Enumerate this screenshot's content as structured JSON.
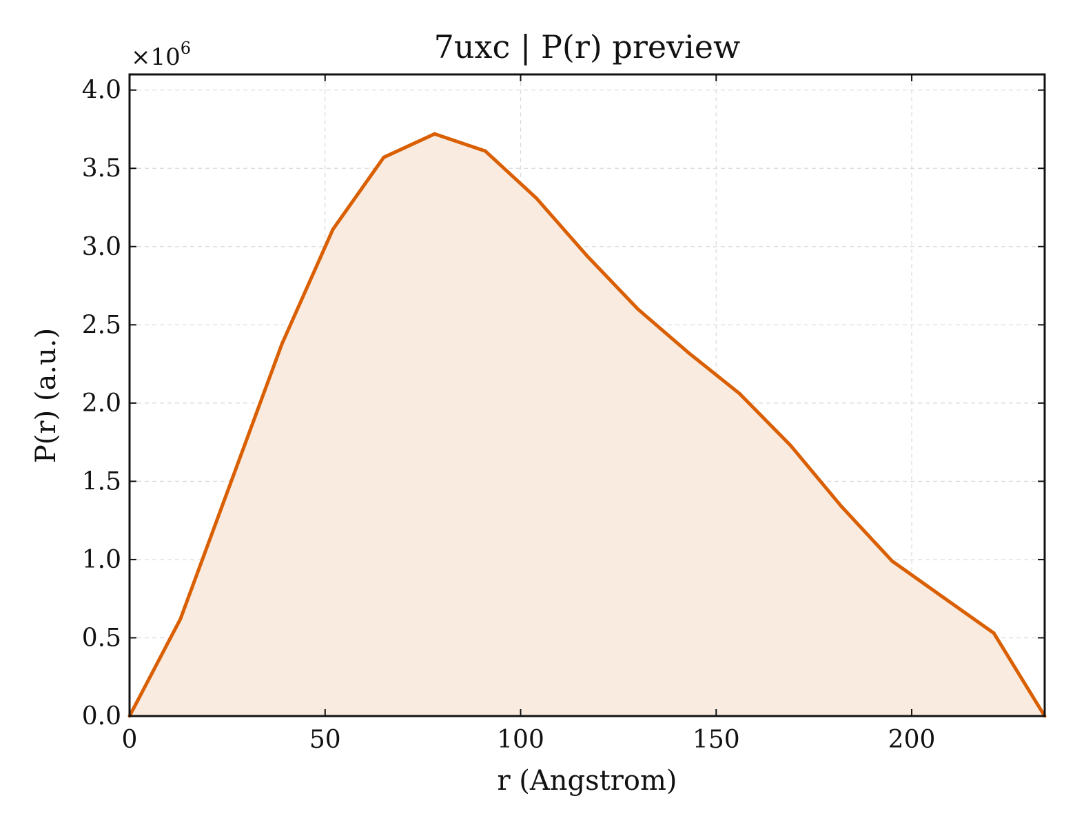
{
  "chart_data": {
    "type": "area",
    "title": "7uxc | P(r) preview",
    "xlabel": "r (Angstrom)",
    "ylabel": "P(r) (a.u.)",
    "y_multiplier_label": "×10",
    "y_multiplier_exponent": "6",
    "xlim": [
      0,
      234
    ],
    "ylim": [
      0,
      4.1
    ],
    "x_ticks": [
      0,
      50,
      100,
      150,
      200
    ],
    "y_ticks": [
      0.0,
      0.5,
      1.0,
      1.5,
      2.0,
      2.5,
      3.0,
      3.5,
      4.0
    ],
    "grid": true,
    "series": [
      {
        "color": "#d95f02",
        "fill_color": "#f9ebe0",
        "x": [
          0,
          13,
          26,
          39,
          52,
          65,
          78,
          91,
          104,
          117,
          130,
          143,
          156,
          169,
          182,
          195,
          208,
          221,
          234
        ],
        "y": [
          0.0,
          0.62,
          1.5,
          2.38,
          3.11,
          3.57,
          3.72,
          3.61,
          3.31,
          2.94,
          2.6,
          2.32,
          2.06,
          1.73,
          1.34,
          0.99,
          0.76,
          0.53,
          0.0
        ]
      }
    ]
  }
}
